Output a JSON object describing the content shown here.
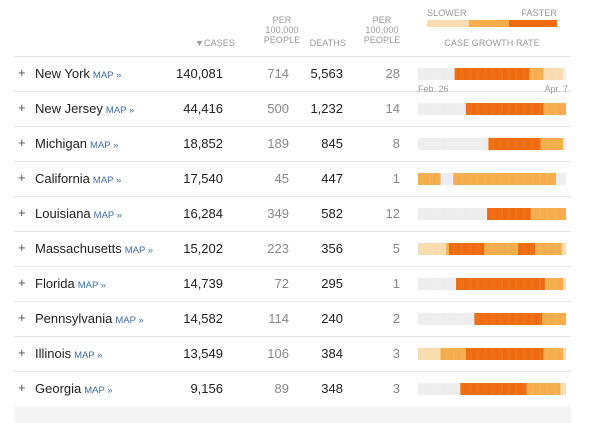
{
  "header": {
    "cases_label": "▼CASES",
    "cases_per_line1": "PER",
    "cases_per_line2": "100,000",
    "cases_per_line3": "PEOPLE",
    "deaths_label": "DEATHS",
    "deaths_per_line1": "PER",
    "deaths_per_line2": "100,000",
    "deaths_per_line3": "PEOPLE",
    "legend_slower": "SLOWER",
    "legend_faster": "FASTER",
    "growth_label": "CASE GROWTH RATE"
  },
  "dates": {
    "start": "Feb. 26",
    "end": "Apr. 7"
  },
  "map_label": "MAP »",
  "colors": {
    "none": "#ededed",
    "low": "#f8dcae",
    "med": "#f5ad4c",
    "high": "#ee6b10",
    "accent_link": "#3a6ea8"
  },
  "rows": [
    {
      "state": "New York",
      "cases": "140,081",
      "cases_per_100k": "714",
      "deaths": "5,563",
      "deaths_per_100k": "28",
      "growth": [
        0,
        0,
        0,
        0,
        0,
        0,
        0,
        0,
        0,
        0,
        0,
        0,
        0,
        0,
        0,
        0,
        0,
        0,
        0,
        0,
        0,
        0,
        0,
        0,
        0,
        0,
        3,
        3,
        3,
        3,
        3,
        3,
        3,
        3,
        3,
        3,
        3,
        3,
        3,
        3,
        3,
        3,
        3,
        3,
        3,
        3,
        3,
        3,
        3,
        3,
        3,
        3,
        3,
        3,
        3,
        3,
        3,
        3,
        3,
        3,
        3,
        3,
        3,
        3,
        3,
        3,
        3,
        3,
        3,
        3,
        3,
        3,
        3,
        3,
        3,
        3,
        3,
        3,
        3,
        2,
        2,
        2,
        2,
        2,
        2,
        2,
        2,
        2,
        2,
        1,
        1,
        1,
        1,
        1,
        1,
        1,
        1,
        1,
        1,
        1,
        1,
        1,
        1,
        0,
        0
      ]
    },
    {
      "state": "New Jersey",
      "cases": "44,416",
      "cases_per_100k": "500",
      "deaths": "1,232",
      "deaths_per_100k": "14",
      "growth": [
        0,
        0,
        0,
        0,
        0,
        0,
        0,
        0,
        0,
        0,
        0,
        0,
        0,
        0,
        0,
        0,
        0,
        0,
        0,
        0,
        0,
        0,
        0,
        0,
        0,
        0,
        0,
        0,
        0,
        0,
        0,
        0,
        0,
        0,
        3,
        3,
        3,
        3,
        3,
        3,
        3,
        3,
        3,
        3,
        3,
        3,
        3,
        3,
        3,
        3,
        3,
        3,
        3,
        3,
        3,
        3,
        3,
        3,
        3,
        3,
        3,
        3,
        3,
        3,
        3,
        3,
        3,
        3,
        3,
        3,
        3,
        3,
        3,
        3,
        3,
        3,
        3,
        3,
        3,
        3,
        3,
        3,
        3,
        3,
        3,
        3,
        3,
        3,
        3,
        2,
        2,
        2,
        2,
        2,
        2,
        2,
        2,
        2,
        2,
        2,
        2,
        2,
        2,
        2,
        2
      ]
    },
    {
      "state": "Michigan",
      "cases": "18,852",
      "cases_per_100k": "189",
      "deaths": "845",
      "deaths_per_100k": "8",
      "growth": [
        0,
        0,
        0,
        0,
        0,
        0,
        0,
        0,
        0,
        0,
        0,
        0,
        0,
        0,
        0,
        0,
        0,
        0,
        0,
        0,
        0,
        0,
        0,
        0,
        0,
        0,
        0,
        0,
        0,
        0,
        0,
        0,
        0,
        0,
        0,
        0,
        0,
        0,
        0,
        0,
        0,
        0,
        0,
        0,
        0,
        0,
        0,
        0,
        0,
        0,
        3,
        3,
        3,
        3,
        3,
        3,
        3,
        3,
        3,
        3,
        3,
        3,
        3,
        3,
        3,
        3,
        3,
        3,
        3,
        3,
        3,
        3,
        3,
        3,
        3,
        3,
        3,
        3,
        3,
        3,
        3,
        3,
        3,
        3,
        3,
        3,
        3,
        2,
        2,
        2,
        2,
        2,
        2,
        2,
        2,
        2,
        2,
        2,
        2,
        2,
        2,
        2,
        2,
        0,
        0
      ]
    },
    {
      "state": "California",
      "cases": "17,540",
      "cases_per_100k": "45",
      "deaths": "447",
      "deaths_per_100k": "1",
      "growth": [
        2,
        2,
        2,
        2,
        2,
        2,
        2,
        2,
        2,
        2,
        2,
        2,
        2,
        2,
        2,
        2,
        0,
        0,
        0,
        0,
        0,
        0,
        0,
        0,
        0,
        2,
        2,
        2,
        2,
        2,
        2,
        2,
        2,
        2,
        2,
        2,
        2,
        2,
        2,
        2,
        2,
        2,
        2,
        2,
        2,
        2,
        2,
        2,
        2,
        2,
        2,
        2,
        2,
        2,
        2,
        2,
        2,
        2,
        2,
        2,
        2,
        2,
        2,
        2,
        2,
        2,
        2,
        2,
        2,
        2,
        2,
        2,
        2,
        2,
        2,
        2,
        2,
        2,
        2,
        2,
        2,
        2,
        2,
        2,
        2,
        2,
        2,
        2,
        2,
        2,
        2,
        2,
        2,
        2,
        2,
        2,
        2,
        2,
        0,
        0,
        0,
        0,
        0,
        0,
        0
      ]
    },
    {
      "state": "Louisiana",
      "cases": "16,284",
      "cases_per_100k": "349",
      "deaths": "582",
      "deaths_per_100k": "12",
      "growth": [
        0,
        0,
        0,
        0,
        0,
        0,
        0,
        0,
        0,
        0,
        0,
        0,
        0,
        0,
        0,
        0,
        0,
        0,
        0,
        0,
        0,
        0,
        0,
        0,
        0,
        0,
        0,
        0,
        0,
        0,
        0,
        0,
        0,
        0,
        0,
        0,
        0,
        0,
        0,
        0,
        0,
        0,
        0,
        0,
        0,
        0,
        0,
        0,
        0,
        3,
        3,
        3,
        3,
        3,
        3,
        3,
        3,
        3,
        3,
        3,
        3,
        3,
        3,
        3,
        3,
        3,
        3,
        3,
        3,
        3,
        3,
        3,
        3,
        3,
        3,
        3,
        3,
        3,
        3,
        3,
        2,
        2,
        2,
        2,
        2,
        2,
        2,
        2,
        2,
        2,
        2,
        2,
        2,
        2,
        2,
        2,
        2,
        2,
        2,
        2,
        2,
        2,
        2,
        2,
        2
      ]
    },
    {
      "state": "Massachusetts",
      "cases": "15,202",
      "cases_per_100k": "223",
      "deaths": "356",
      "deaths_per_100k": "5",
      "growth": [
        1,
        1,
        1,
        1,
        1,
        1,
        1,
        1,
        1,
        1,
        1,
        1,
        1,
        1,
        1,
        1,
        1,
        1,
        1,
        1,
        2,
        2,
        3,
        3,
        3,
        3,
        3,
        3,
        3,
        3,
        3,
        3,
        3,
        3,
        3,
        3,
        3,
        3,
        3,
        3,
        3,
        3,
        3,
        3,
        3,
        3,
        3,
        2,
        2,
        2,
        2,
        2,
        2,
        2,
        2,
        2,
        2,
        2,
        2,
        2,
        2,
        2,
        2,
        2,
        2,
        2,
        2,
        2,
        2,
        2,
        2,
        3,
        3,
        3,
        3,
        3,
        3,
        3,
        3,
        3,
        3,
        3,
        3,
        2,
        2,
        2,
        2,
        2,
        2,
        2,
        2,
        2,
        2,
        2,
        2,
        2,
        2,
        2,
        2,
        2,
        2,
        2,
        1,
        1,
        1
      ]
    },
    {
      "state": "Florida",
      "cases": "14,739",
      "cases_per_100k": "72",
      "deaths": "295",
      "deaths_per_100k": "1",
      "growth": [
        0,
        0,
        0,
        0,
        0,
        0,
        0,
        0,
        0,
        0,
        0,
        0,
        0,
        0,
        0,
        0,
        0,
        0,
        0,
        0,
        0,
        0,
        0,
        0,
        0,
        0,
        0,
        3,
        3,
        3,
        3,
        3,
        3,
        3,
        3,
        3,
        3,
        3,
        3,
        3,
        3,
        3,
        3,
        3,
        3,
        3,
        3,
        3,
        3,
        3,
        3,
        3,
        3,
        3,
        3,
        3,
        3,
        3,
        3,
        3,
        3,
        3,
        3,
        3,
        3,
        3,
        3,
        3,
        3,
        3,
        3,
        3,
        3,
        3,
        3,
        3,
        3,
        3,
        3,
        3,
        3,
        3,
        3,
        3,
        3,
        3,
        3,
        3,
        3,
        3,
        2,
        2,
        2,
        2,
        2,
        2,
        2,
        2,
        2,
        2,
        2,
        2,
        2,
        1,
        1
      ]
    },
    {
      "state": "Pennsylvania",
      "cases": "14,582",
      "cases_per_100k": "114",
      "deaths": "240",
      "deaths_per_100k": "2",
      "growth": [
        0,
        0,
        0,
        0,
        0,
        0,
        0,
        0,
        0,
        0,
        0,
        0,
        0,
        0,
        0,
        0,
        0,
        0,
        0,
        0,
        0,
        0,
        0,
        0,
        0,
        0,
        0,
        0,
        0,
        0,
        0,
        0,
        0,
        0,
        0,
        0,
        0,
        0,
        0,
        0,
        3,
        3,
        3,
        3,
        3,
        3,
        3,
        3,
        3,
        3,
        3,
        3,
        3,
        3,
        3,
        3,
        3,
        3,
        3,
        3,
        3,
        3,
        3,
        3,
        3,
        3,
        3,
        3,
        3,
        3,
        3,
        3,
        3,
        3,
        3,
        3,
        3,
        3,
        3,
        3,
        3,
        3,
        3,
        3,
        3,
        3,
        3,
        3,
        2,
        2,
        2,
        2,
        2,
        2,
        2,
        2,
        2,
        2,
        2,
        2,
        2,
        2,
        2,
        2,
        2
      ]
    },
    {
      "state": "Illinois",
      "cases": "13,549",
      "cases_per_100k": "106",
      "deaths": "384",
      "deaths_per_100k": "3",
      "growth": [
        1,
        1,
        1,
        1,
        1,
        1,
        1,
        1,
        1,
        1,
        1,
        1,
        1,
        1,
        1,
        1,
        2,
        2,
        2,
        2,
        2,
        2,
        2,
        2,
        2,
        2,
        2,
        2,
        2,
        2,
        2,
        2,
        2,
        2,
        3,
        3,
        3,
        3,
        3,
        3,
        3,
        3,
        3,
        3,
        3,
        3,
        3,
        3,
        3,
        3,
        3,
        3,
        3,
        3,
        3,
        3,
        3,
        3,
        3,
        3,
        3,
        3,
        3,
        3,
        3,
        3,
        3,
        3,
        3,
        3,
        3,
        3,
        3,
        3,
        3,
        3,
        3,
        3,
        3,
        3,
        3,
        3,
        3,
        3,
        3,
        3,
        3,
        3,
        3,
        2,
        2,
        2,
        2,
        2,
        2,
        2,
        2,
        2,
        2,
        2,
        2,
        2,
        2,
        1,
        1
      ]
    },
    {
      "state": "Georgia",
      "cases": "9,156",
      "cases_per_100k": "89",
      "deaths": "348",
      "deaths_per_100k": "3",
      "growth": [
        0,
        0,
        0,
        0,
        0,
        0,
        0,
        0,
        0,
        0,
        0,
        0,
        0,
        0,
        0,
        0,
        0,
        0,
        0,
        0,
        0,
        0,
        0,
        0,
        0,
        0,
        0,
        0,
        0,
        0,
        3,
        3,
        3,
        3,
        3,
        3,
        3,
        3,
        3,
        3,
        3,
        3,
        3,
        3,
        3,
        3,
        3,
        3,
        3,
        3,
        3,
        3,
        3,
        3,
        3,
        3,
        3,
        3,
        3,
        3,
        3,
        3,
        3,
        3,
        3,
        3,
        3,
        3,
        3,
        3,
        3,
        3,
        3,
        3,
        3,
        3,
        3,
        2,
        2,
        2,
        2,
        2,
        2,
        2,
        2,
        2,
        2,
        2,
        2,
        2,
        2,
        2,
        2,
        2,
        2,
        2,
        2,
        2,
        2,
        2,
        2,
        1,
        1,
        1,
        1
      ]
    }
  ]
}
